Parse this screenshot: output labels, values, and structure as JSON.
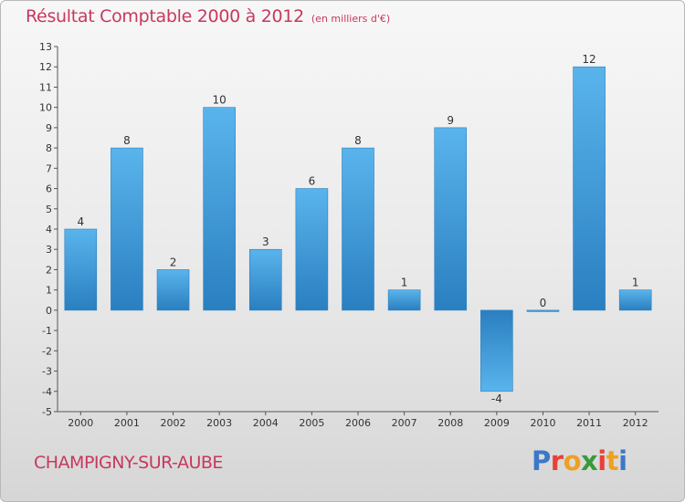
{
  "chart_data": {
    "type": "bar",
    "title": "Résultat Comptable 2000 à 2012",
    "unit_label": "(en milliers d'€)",
    "categories": [
      "2000",
      "2001",
      "2002",
      "2003",
      "2004",
      "2005",
      "2006",
      "2007",
      "2008",
      "2009",
      "2010",
      "2011",
      "2012"
    ],
    "values": [
      4,
      8,
      2,
      10,
      3,
      6,
      8,
      1,
      9,
      -4,
      0,
      12,
      1
    ],
    "ylim": [
      -5,
      13
    ],
    "yticks": [
      -5,
      -4,
      -3,
      -2,
      -1,
      0,
      1,
      2,
      3,
      4,
      5,
      6,
      7,
      8,
      9,
      10,
      11,
      12,
      13
    ],
    "xlabel": "",
    "ylabel": "",
    "grid": false
  },
  "footer": {
    "commune": "CHAMPIGNY-SUR-AUBE",
    "logo_letters": [
      "P",
      "r",
      "o",
      "x",
      "i",
      "t",
      "i"
    ],
    "logo_colors": [
      "#3a78c9",
      "#e8403a",
      "#f0a020",
      "#3a9a3a",
      "#e8403a",
      "#f0a020",
      "#3a78c9"
    ]
  },
  "colors": {
    "title": "#c8385e",
    "bar_light": "#5ab4ec",
    "bar_dark": "#2a7fc0"
  }
}
